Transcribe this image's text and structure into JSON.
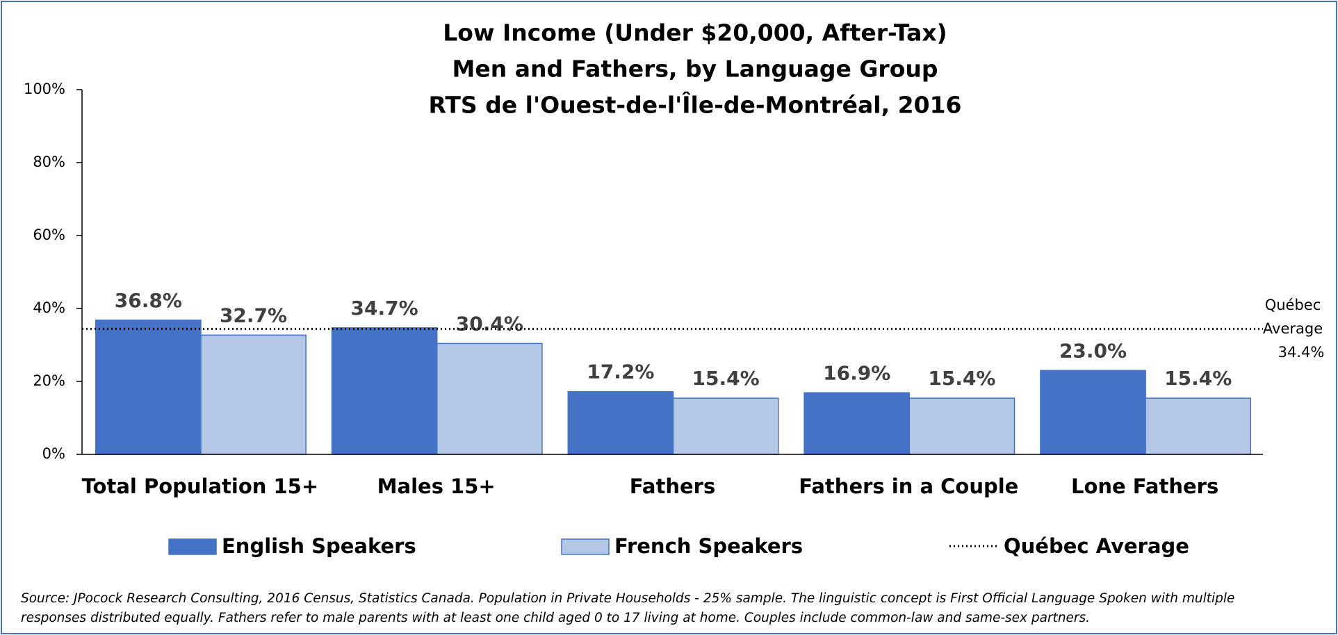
{
  "chart_data": {
    "type": "bar",
    "title": [
      "Low Income (Under $20,000, After-Tax)",
      "Men and Fathers, by Language Group",
      "RTS de l'Ouest-de-l'Île-de-Montréal, 2016"
    ],
    "categories": [
      "Total Population 15+",
      "Males 15+",
      "Fathers",
      "Fathers in a Couple",
      "Lone Fathers"
    ],
    "series": [
      {
        "name": "English Speakers",
        "color": "#4472c4",
        "values": [
          36.8,
          34.7,
          17.2,
          16.9,
          23.0
        ],
        "value_labels": [
          "36.8%",
          "34.7%",
          "17.2%",
          "16.9%",
          "23.0%"
        ]
      },
      {
        "name": "French Speakers",
        "color": "#b4c7e7",
        "values": [
          32.7,
          30.4,
          15.4,
          15.4,
          15.4
        ],
        "value_labels": [
          "32.7%",
          "30.4%",
          "15.4%",
          "15.4%",
          "15.4%"
        ]
      }
    ],
    "reference_line": {
      "name": "Québec Average",
      "annotation": [
        "Québec",
        "Average"
      ],
      "value": 34.4,
      "value_label": "34.4%",
      "color": "#000000"
    },
    "ylim": [
      0,
      100
    ],
    "yticks": [
      {
        "value": 0,
        "label": "0%"
      },
      {
        "value": 20,
        "label": "20%"
      },
      {
        "value": 40,
        "label": "40%"
      },
      {
        "value": 60,
        "label": "60%"
      },
      {
        "value": 80,
        "label": "80%"
      },
      {
        "value": 100,
        "label": "100%"
      }
    ],
    "grid": false,
    "legend": "bottom",
    "source": [
      "Source: JPocock Research Consulting, 2016 Census, Statistics Canada. Population in Private Households - 25% sample. The linguistic concept is First Official Language Spoken with multiple",
      "responses distributed equally. Fathers refer to male parents with at least one child aged 0 to 17 living at home. Couples include common-law and same-sex partners."
    ]
  }
}
